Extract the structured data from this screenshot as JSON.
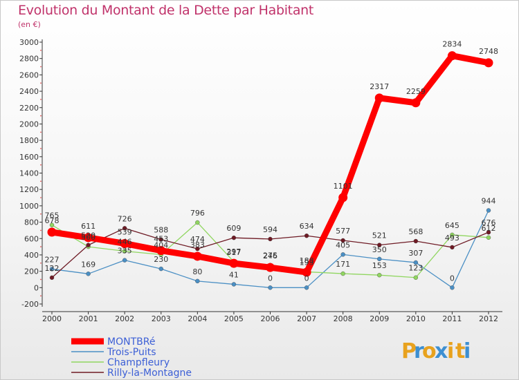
{
  "header": {
    "title": "Evolution du Montant de la Dette par Habitant",
    "subtitle": "(en €)"
  },
  "brand": {
    "letters": [
      "P",
      "r",
      "o",
      "x",
      "i",
      "t",
      "i"
    ],
    "colors": [
      "#e8a21e",
      "#3d8fd1",
      "#e8a21e",
      "#3d8fd1",
      "#e8a21e",
      "#e8a21e",
      "#3d8fd1"
    ]
  },
  "chart_data": {
    "type": "line",
    "title": "Evolution du Montant de la Dette par Habitant",
    "ylabel": "(en €)",
    "xlabel": "",
    "x": [
      "2000",
      "2001",
      "2002",
      "2003",
      "2004",
      "2005",
      "2006",
      "2007",
      "2008",
      "2009",
      "2010",
      "2011",
      "2012"
    ],
    "ylim": [
      -200,
      3000
    ],
    "yticks": [
      "-200",
      "0",
      "200",
      "400",
      "600",
      "800",
      "1000",
      "1200",
      "1400",
      "1600",
      "1800",
      "2000",
      "2200",
      "2400",
      "2600",
      "2800",
      "3000"
    ],
    "grid": false,
    "legend": "bottom-left",
    "series": [
      {
        "name": "Trois-Puits",
        "color": "#4a8fc4",
        "values": [
          227,
          169,
          335,
          230,
          80,
          41,
          0,
          0,
          405,
          350,
          307,
          0,
          944
        ],
        "labels": [
          "227",
          "169",
          "335",
          "230",
          "80",
          "41",
          "0",
          "0",
          "405",
          "350",
          "307",
          "0",
          "944"
        ]
      },
      {
        "name": "Champfleury",
        "color": "#90d660",
        "values": [
          765,
          500,
          446,
          404,
          796,
          317,
          275,
          193,
          171,
          153,
          123,
          645,
          612
        ],
        "labels": [
          "765",
          "500",
          "446",
          "404",
          "796",
          "317",
          "275",
          "193",
          "171",
          "153",
          "123",
          "645",
          "612"
        ]
      },
      {
        "name": "Rilly-la-Montagne",
        "color": "#6e1a24",
        "values": [
          122,
          520,
          726,
          588,
          474,
          609,
          594,
          634,
          577,
          521,
          568,
          493,
          676
        ],
        "labels": [
          "122",
          "520",
          "726",
          "588",
          "474",
          "609",
          "594",
          "634",
          "577",
          "521",
          "568",
          "493",
          "676"
        ]
      },
      {
        "name": "MONTBRé",
        "color": "#ff0000",
        "values": [
          678,
          611,
          539,
          453,
          383,
          297,
          246,
          188,
          1101,
          2317,
          2259,
          2834,
          2748
        ],
        "labels": [
          "678",
          "611",
          "539",
          "453",
          "383",
          "297",
          "246",
          "188",
          "1101",
          "2317",
          "2259",
          "2834",
          "2748"
        ]
      }
    ]
  }
}
